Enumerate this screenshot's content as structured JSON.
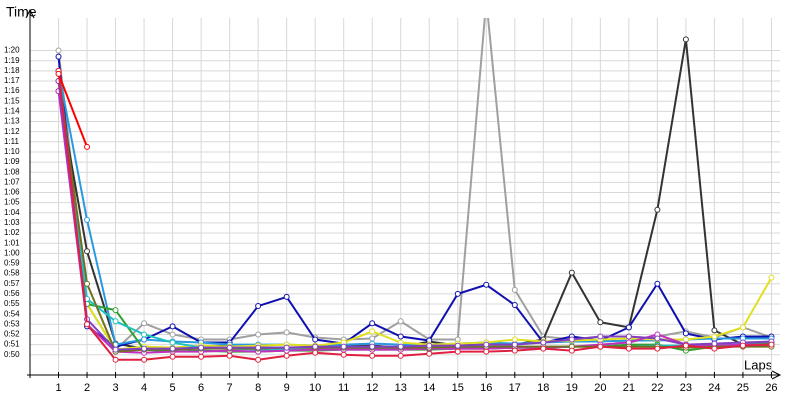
{
  "chart_data": {
    "type": "line",
    "y_label": "Time",
    "x_label": "Laps",
    "x": [
      1,
      2,
      3,
      4,
      5,
      6,
      7,
      8,
      9,
      10,
      11,
      12,
      13,
      14,
      15,
      16,
      17,
      18,
      19,
      20,
      21,
      22,
      23,
      24,
      25,
      26
    ],
    "xlim": [
      0,
      26.3
    ],
    "ylim": [
      48,
      84
    ],
    "yticks": [
      {
        "value": 50,
        "label": "0:50"
      },
      {
        "value": 51,
        "label": "0:51"
      },
      {
        "value": 52,
        "label": "0:52"
      },
      {
        "value": 53,
        "label": "0:53"
      },
      {
        "value": 54,
        "label": "0:54"
      },
      {
        "value": 55,
        "label": "0:55"
      },
      {
        "value": 56,
        "label": "0:56"
      },
      {
        "value": 57,
        "label": "0:57"
      },
      {
        "value": 58,
        "label": "0:58"
      },
      {
        "value": 59,
        "label": "0:59"
      },
      {
        "value": 60,
        "label": "1:00"
      },
      {
        "value": 61,
        "label": "1:01"
      },
      {
        "value": 62,
        "label": "1:02"
      },
      {
        "value": 63,
        "label": "1:03"
      },
      {
        "value": 64,
        "label": "1:04"
      },
      {
        "value": 65,
        "label": "1:05"
      },
      {
        "value": 66,
        "label": "1:06"
      },
      {
        "value": 67,
        "label": "1:07"
      },
      {
        "value": 68,
        "label": "1:08"
      },
      {
        "value": 69,
        "label": "1:09"
      },
      {
        "value": 70,
        "label": "1:10"
      },
      {
        "value": 71,
        "label": "1:11"
      },
      {
        "value": 72,
        "label": "1:12"
      },
      {
        "value": 73,
        "label": "1:13"
      },
      {
        "value": 74,
        "label": "1:14"
      },
      {
        "value": 75,
        "label": "1:15"
      },
      {
        "value": 76,
        "label": "1:16"
      },
      {
        "value": 77,
        "label": "1:17"
      },
      {
        "value": 78,
        "label": "1:18"
      },
      {
        "value": 79,
        "label": "1:19"
      },
      {
        "value": 80,
        "label": "1:20"
      }
    ],
    "grid": true,
    "series": [
      {
        "color": "#a0a0a0",
        "values": [
          80,
          55,
          50.5,
          53.1,
          52,
          51.5,
          51.5,
          52,
          52.2,
          51.7,
          51.5,
          51.6,
          53.3,
          51.5,
          51.5,
          85,
          56.4,
          51.8,
          51.5,
          51.5,
          51.2,
          51.8,
          52.3,
          51.7,
          52.7,
          51.7
        ]
      },
      {
        "color": "#333333",
        "values": [
          76,
          60.2,
          51.1,
          50.6,
          50.5,
          50.8,
          50.9,
          50.7,
          50.7,
          50.7,
          50.9,
          50.9,
          50.7,
          51.3,
          50.9,
          51.2,
          51,
          51.5,
          58.1,
          53.2,
          52.7,
          64.3,
          81.1,
          52.4,
          51,
          51.2
        ]
      },
      {
        "color": "#1010b0",
        "values": [
          79.4,
          52.8,
          50.8,
          51.5,
          52.8,
          51.2,
          51.2,
          54.8,
          55.7,
          51.5,
          51.1,
          53.1,
          51.8,
          51.4,
          56,
          56.9,
          54.9,
          51.2,
          51.8,
          51.4,
          52.7,
          57,
          52.1,
          51.5,
          51.8,
          51.8
        ]
      },
      {
        "color": "#2a9ae0",
        "values": [
          78,
          63.3,
          51,
          51.5,
          51.3,
          51.2,
          51,
          51,
          51,
          50.9,
          51,
          51.1,
          51,
          51,
          51.1,
          51.2,
          51.1,
          51.2,
          51.3,
          51.3,
          51.4,
          51.4,
          51.5,
          51.6,
          51.6,
          51.6
        ]
      },
      {
        "color": "#e0e020",
        "values": [
          77,
          55,
          50.5,
          50.8,
          50.7,
          50.9,
          50.8,
          50.9,
          51,
          50.9,
          51.2,
          52.3,
          51.2,
          51,
          51.1,
          51.2,
          51.5,
          51.3,
          51.4,
          51.5,
          51.6,
          51.5,
          51.5,
          51.8,
          52.7,
          57.6
        ]
      },
      {
        "color": "#30a030",
        "values": [
          78,
          55,
          54.4,
          50.5,
          50.3,
          50.4,
          50.3,
          50.3,
          50.4,
          50.4,
          50.5,
          50.5,
          50.5,
          50.5,
          50.6,
          50.6,
          50.7,
          50.7,
          50.8,
          50.8,
          51,
          51,
          50.4,
          50.8,
          51,
          51.2
        ]
      },
      {
        "color": "#20c0c0",
        "values": [
          77,
          55.5,
          53.3,
          52,
          51.2,
          50.7,
          50.6,
          50.5,
          50.5,
          50.5,
          50.5,
          50.6,
          50.6,
          50.6,
          50.6,
          50.7,
          50.7,
          50.7,
          50.8,
          50.8,
          50.8,
          50.9,
          50.9,
          50.9,
          51,
          51
        ]
      },
      {
        "color": "#c030c0",
        "values": [
          76,
          53,
          50.3,
          50.2,
          50.3,
          50.3,
          50.4,
          50.3,
          50.4,
          50.5,
          50.5,
          50.5,
          50.5,
          50.6,
          50.6,
          50.6,
          50.7,
          50.7,
          50.8,
          51,
          51.2,
          52,
          51,
          50.9,
          51,
          51
        ]
      },
      {
        "color": "#707020",
        "values": [
          77,
          57,
          50.3,
          50.5,
          50.5,
          50.6,
          50.6,
          50.6,
          50.7,
          50.7,
          50.7,
          50.7,
          50.7,
          50.7,
          50.8,
          50.8,
          50.8,
          50.8,
          50.8,
          50.8,
          50.8,
          50.8,
          50.7,
          50.8,
          50.8,
          50.8
        ]
      },
      {
        "color": "#8040c0",
        "values": [
          77,
          53.5,
          50.5,
          50.6,
          50.6,
          50.7,
          50.7,
          50.7,
          50.7,
          50.8,
          50.8,
          50.8,
          50.8,
          50.9,
          50.9,
          51,
          51,
          51.2,
          51.5,
          51.8,
          51.8,
          51.6,
          51,
          51.1,
          51.2,
          51.3
        ]
      },
      {
        "color": "#e02040",
        "values": [
          78,
          53,
          49.5,
          49.5,
          49.8,
          49.8,
          49.9,
          49.5,
          49.9,
          50.2,
          50,
          49.9,
          49.9,
          50.1,
          50.3,
          50.3,
          50.4,
          50.6,
          50.4,
          50.8,
          50.6,
          50.6,
          50.9,
          50.6,
          50.9,
          51
        ]
      },
      {
        "color": "#ff0000",
        "values": [
          77.7,
          70.5,
          null,
          null,
          null,
          null,
          null,
          null,
          null,
          null,
          null,
          null,
          null,
          null,
          null,
          null,
          null,
          null,
          null,
          null,
          null,
          null,
          null,
          null,
          null,
          null
        ]
      }
    ]
  }
}
